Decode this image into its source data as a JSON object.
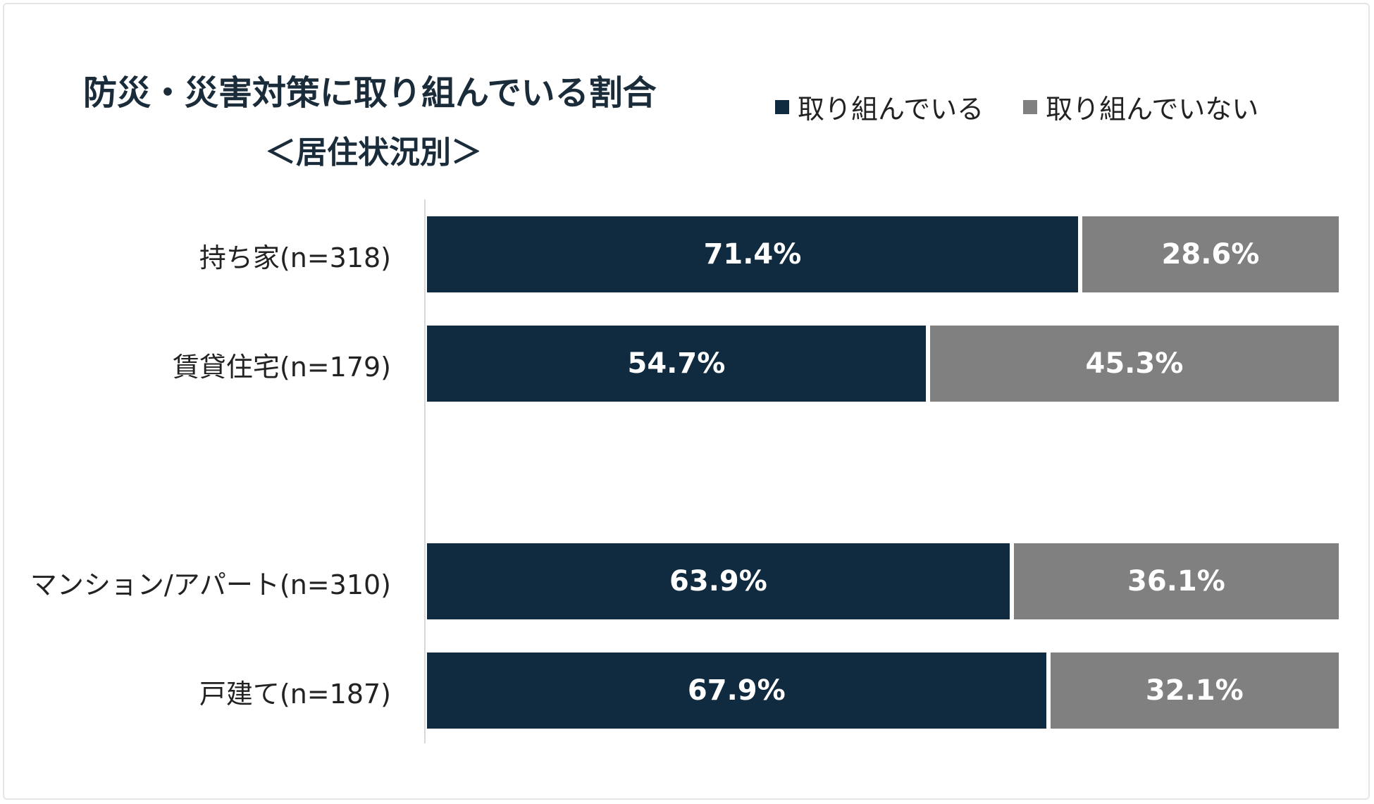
{
  "chart_data": {
    "type": "bar",
    "orientation": "horizontal-stacked-100",
    "title": "防災・災害対策に取り組んでいる割合",
    "subtitle": "＜居住状況別＞",
    "categories": [
      "持ち家(n=318)",
      "賃貸住宅(n=179)",
      "マンション/アパート(n=310)",
      "戸建て(n=187)"
    ],
    "series": [
      {
        "name": "取り組んでいる",
        "values": [
          71.4,
          54.7,
          63.9,
          67.9
        ],
        "labels": [
          "71.4%",
          "54.7%",
          "63.9%",
          "67.9%"
        ],
        "color": "#102b40"
      },
      {
        "name": "取り組んでいない",
        "values": [
          28.6,
          45.3,
          36.1,
          32.1
        ],
        "labels": [
          "28.6%",
          "45.3%",
          "36.1%",
          "32.1%"
        ],
        "color": "#808080"
      }
    ],
    "xlim": [
      0,
      100
    ],
    "legend": "top-right",
    "grid": false
  }
}
